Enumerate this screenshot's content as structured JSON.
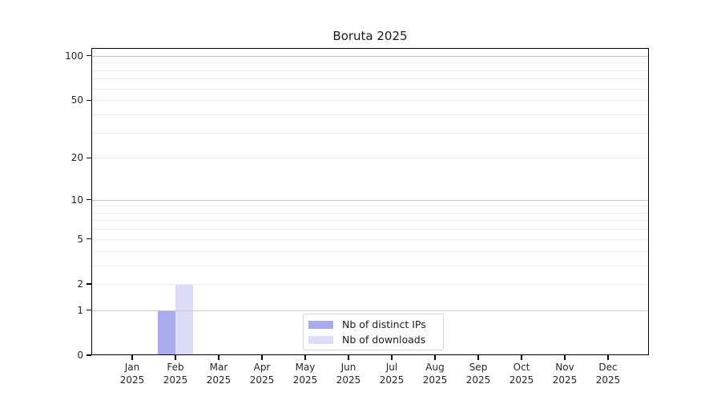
{
  "chart_data": {
    "type": "bar",
    "title": "Boruta 2025",
    "x_categories": [
      {
        "month": "Jan",
        "year": "2025"
      },
      {
        "month": "Feb",
        "year": "2025"
      },
      {
        "month": "Mar",
        "year": "2025"
      },
      {
        "month": "Apr",
        "year": "2025"
      },
      {
        "month": "May",
        "year": "2025"
      },
      {
        "month": "Jun",
        "year": "2025"
      },
      {
        "month": "Jul",
        "year": "2025"
      },
      {
        "month": "Aug",
        "year": "2025"
      },
      {
        "month": "Sep",
        "year": "2025"
      },
      {
        "month": "Oct",
        "year": "2025"
      },
      {
        "month": "Nov",
        "year": "2025"
      },
      {
        "month": "Dec",
        "year": "2025"
      }
    ],
    "series": [
      {
        "name": "Nb of distinct IPs",
        "color": "#aaaaf0",
        "values": [
          0,
          1,
          0,
          0,
          0,
          0,
          0,
          0,
          0,
          0,
          0,
          0
        ]
      },
      {
        "name": "Nb of downloads",
        "color": "#dcdcf8",
        "values": [
          0,
          2,
          0,
          0,
          0,
          0,
          0,
          0,
          0,
          0,
          0,
          0
        ]
      }
    ],
    "y_axis": {
      "scale": "log1p",
      "tick_values": [
        0,
        1,
        2,
        5,
        10,
        20,
        50,
        100
      ],
      "max": 113
    },
    "gridlines": {
      "major": [
        1,
        10,
        100
      ],
      "minor": [
        2,
        3,
        4,
        5,
        6,
        7,
        8,
        9,
        20,
        30,
        40,
        50,
        60,
        70,
        80,
        90
      ]
    },
    "legend": {
      "entries": [
        "Nb of distinct IPs",
        "Nb of downloads"
      ],
      "position": "lower center"
    }
  },
  "colors": {
    "background": "#ffffff",
    "bar_distinct_ips": "#aaaaf0",
    "bar_downloads": "#dcdcf8",
    "gridline_major": "#c9c9c9",
    "gridline_minor": "#ededed",
    "axis_frame": "#000000",
    "tick_text": "#262626",
    "legend_border": "#d4d4d4"
  }
}
